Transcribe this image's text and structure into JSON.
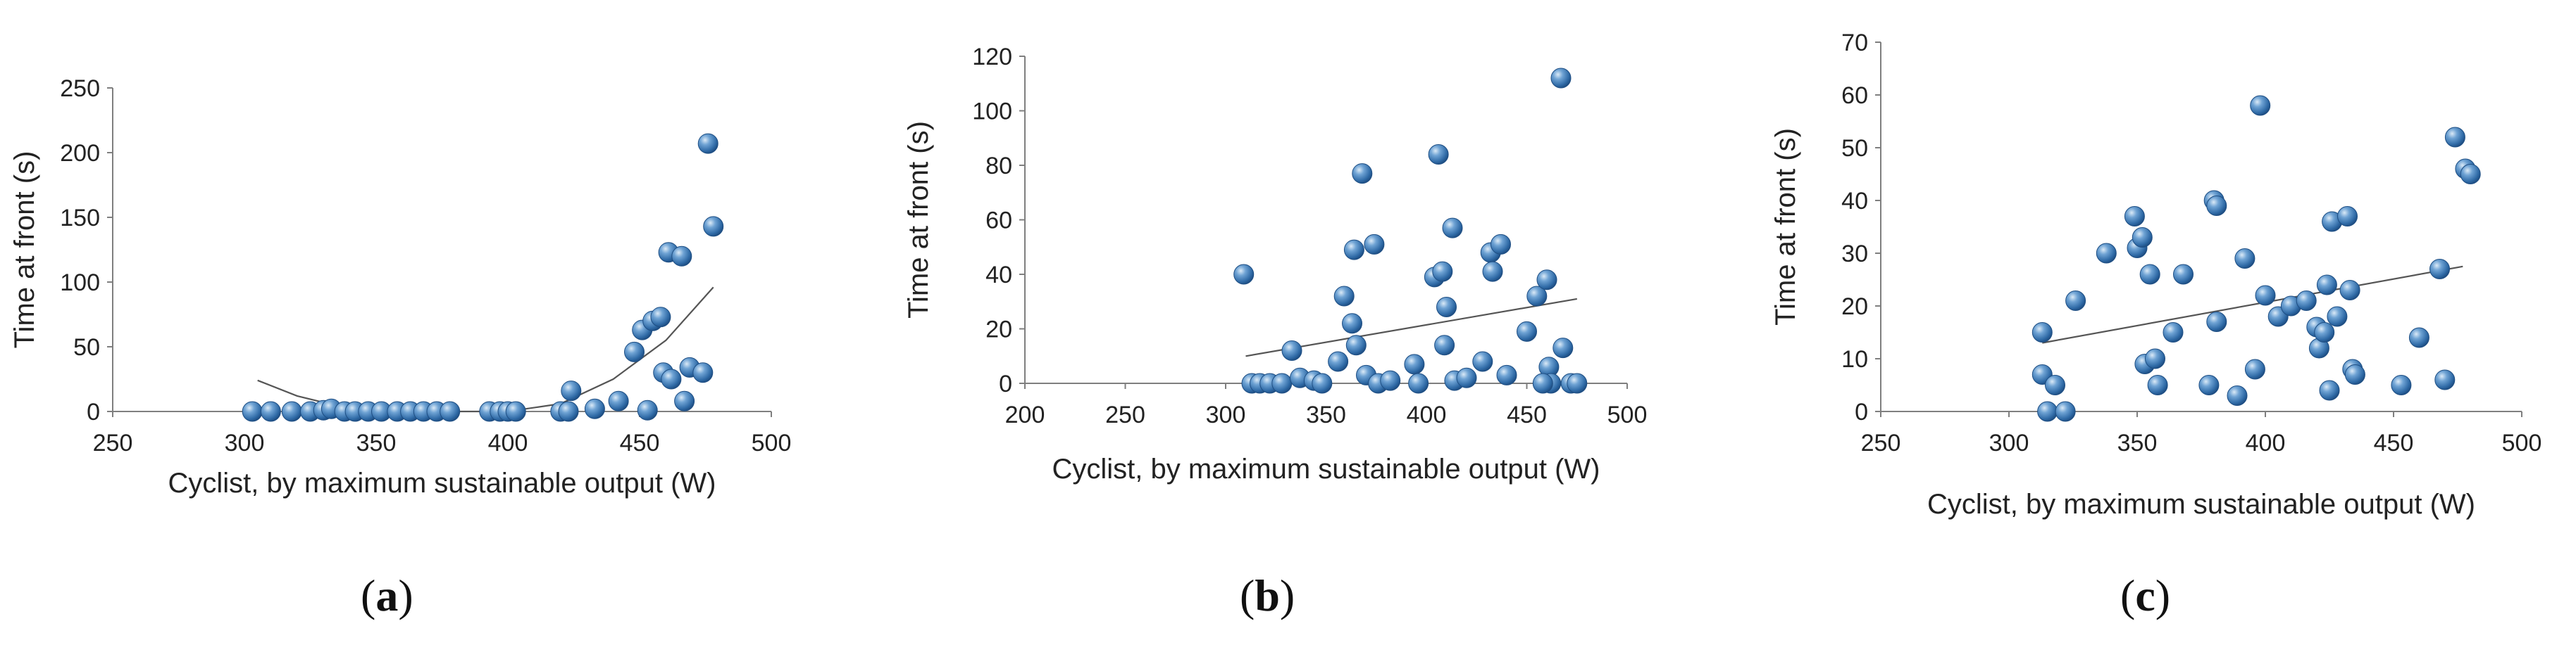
{
  "charts": [
    {
      "caption_letter": "a",
      "chart_data": {
        "type": "scatter",
        "xlabel": "Cyclist, by maximum sustainable output (W)",
        "ylabel": "Time at front (s)",
        "xlim": [
          250,
          500
        ],
        "ylim": [
          0,
          250
        ],
        "xticks": [
          250,
          300,
          350,
          400,
          450,
          500
        ],
        "yticks": [
          0,
          50,
          100,
          150,
          200,
          250
        ],
        "trendline": "polynomial",
        "trend_points": [
          [
            305,
            24
          ],
          [
            320,
            12
          ],
          [
            340,
            2
          ],
          [
            360,
            0
          ],
          [
            380,
            0
          ],
          [
            400,
            0
          ],
          [
            420,
            6
          ],
          [
            440,
            25
          ],
          [
            460,
            55
          ],
          [
            478,
            96
          ]
        ],
        "points": [
          [
            303,
            0
          ],
          [
            310,
            0
          ],
          [
            318,
            0
          ],
          [
            325,
            0
          ],
          [
            330,
            1
          ],
          [
            333,
            2
          ],
          [
            338,
            0
          ],
          [
            342,
            0
          ],
          [
            347,
            0
          ],
          [
            352,
            0
          ],
          [
            358,
            0
          ],
          [
            363,
            0
          ],
          [
            368,
            0
          ],
          [
            373,
            0
          ],
          [
            378,
            0
          ],
          [
            393,
            0
          ],
          [
            397,
            0
          ],
          [
            400,
            0
          ],
          [
            403,
            0
          ],
          [
            420,
            0
          ],
          [
            423,
            0
          ],
          [
            424,
            16
          ],
          [
            433,
            2
          ],
          [
            442,
            8
          ],
          [
            448,
            46
          ],
          [
            453,
            1
          ],
          [
            451,
            63
          ],
          [
            455,
            70
          ],
          [
            458,
            73
          ],
          [
            459,
            30
          ],
          [
            462,
            25
          ],
          [
            461,
            123
          ],
          [
            466,
            120
          ],
          [
            467,
            8
          ],
          [
            469,
            34
          ],
          [
            474,
            30
          ],
          [
            476,
            207
          ],
          [
            478,
            143
          ]
        ]
      }
    },
    {
      "caption_letter": "b",
      "chart_data": {
        "type": "scatter",
        "xlabel": "Cyclist, by maximum sustainable output (W)",
        "ylabel": "Time at front (s)",
        "xlim": [
          200,
          500
        ],
        "ylim": [
          0,
          120
        ],
        "xticks": [
          200,
          250,
          300,
          350,
          400,
          450,
          500
        ],
        "yticks": [
          0,
          20,
          40,
          60,
          80,
          100,
          120
        ],
        "trendline": "linear",
        "trend_points": [
          [
            310,
            10
          ],
          [
            475,
            31
          ]
        ],
        "points": [
          [
            309,
            40
          ],
          [
            313,
            0
          ],
          [
            317,
            0
          ],
          [
            322,
            0
          ],
          [
            328,
            0
          ],
          [
            333,
            12
          ],
          [
            337,
            2
          ],
          [
            344,
            1
          ],
          [
            348,
            0
          ],
          [
            356,
            8
          ],
          [
            359,
            32
          ],
          [
            363,
            22
          ],
          [
            364,
            49
          ],
          [
            365,
            14
          ],
          [
            368,
            77
          ],
          [
            370,
            3
          ],
          [
            374,
            51
          ],
          [
            376,
            0
          ],
          [
            382,
            1
          ],
          [
            394,
            7
          ],
          [
            396,
            0
          ],
          [
            404,
            39
          ],
          [
            408,
            41
          ],
          [
            406,
            84
          ],
          [
            410,
            28
          ],
          [
            409,
            14
          ],
          [
            413,
            57
          ],
          [
            414,
            1
          ],
          [
            420,
            2
          ],
          [
            428,
            8
          ],
          [
            432,
            48
          ],
          [
            433,
            41
          ],
          [
            437,
            51
          ],
          [
            440,
            3
          ],
          [
            450,
            19
          ],
          [
            455,
            32
          ],
          [
            460,
            38
          ],
          [
            461,
            6
          ],
          [
            462,
            0
          ],
          [
            467,
            112
          ],
          [
            468,
            13
          ],
          [
            472,
            0
          ],
          [
            475,
            0
          ],
          [
            458,
            0
          ]
        ]
      }
    },
    {
      "caption_letter": "c",
      "chart_data": {
        "type": "scatter",
        "xlabel": "Cyclist, by maximum sustainable output (W)",
        "ylabel": "Time at front (s)",
        "xlim": [
          250,
          500
        ],
        "ylim": [
          0,
          70
        ],
        "xticks": [
          250,
          300,
          350,
          400,
          450,
          500
        ],
        "yticks": [
          0,
          10,
          20,
          30,
          40,
          50,
          60,
          70
        ],
        "trendline": "linear",
        "trend_points": [
          [
            313,
            13
          ],
          [
            477,
            27.5
          ]
        ],
        "points": [
          [
            313,
            15
          ],
          [
            313,
            7
          ],
          [
            315,
            0
          ],
          [
            318,
            5
          ],
          [
            322,
            0
          ],
          [
            326,
            21
          ],
          [
            338,
            30
          ],
          [
            349,
            37
          ],
          [
            350,
            31
          ],
          [
            352,
            33
          ],
          [
            353,
            9
          ],
          [
            355,
            26
          ],
          [
            357,
            10
          ],
          [
            358,
            5
          ],
          [
            364,
            15
          ],
          [
            368,
            26
          ],
          [
            378,
            5
          ],
          [
            380,
            40
          ],
          [
            381,
            39
          ],
          [
            381,
            17
          ],
          [
            389,
            3
          ],
          [
            392,
            29
          ],
          [
            396,
            8
          ],
          [
            398,
            58
          ],
          [
            400,
            22
          ],
          [
            405,
            18
          ],
          [
            410,
            20
          ],
          [
            416,
            21
          ],
          [
            420,
            16
          ],
          [
            421,
            12
          ],
          [
            423,
            15
          ],
          [
            424,
            24
          ],
          [
            425,
            4
          ],
          [
            426,
            36
          ],
          [
            428,
            18
          ],
          [
            432,
            37
          ],
          [
            433,
            23
          ],
          [
            434,
            8
          ],
          [
            435,
            7
          ],
          [
            453,
            5
          ],
          [
            460,
            14
          ],
          [
            468,
            27
          ],
          [
            470,
            6
          ],
          [
            474,
            52
          ],
          [
            478,
            46
          ],
          [
            480,
            45
          ]
        ]
      }
    }
  ]
}
